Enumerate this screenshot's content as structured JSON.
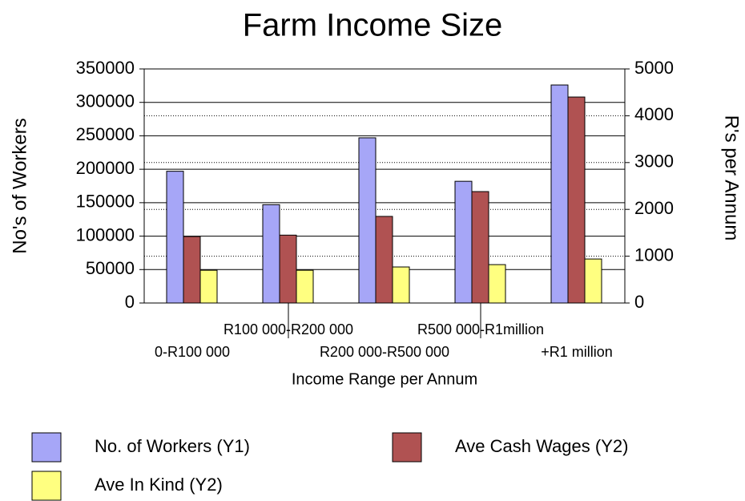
{
  "chart_data": {
    "type": "bar",
    "title": "Farm Income Size",
    "x_label": "Income Range per Annum",
    "y_label": "No's of Workers",
    "y2_label": "R's per Annum",
    "categories": [
      "0-R100 000",
      "R100 000-R200 000",
      "R200 000-R500 000",
      "R500 000-R1million",
      "+R1 million"
    ],
    "series": [
      {
        "name": "No. of Workers (Y1)",
        "color": "#a6a6f7",
        "values": [
          197000,
          147000,
          247000,
          182000,
          326000
        ]
      },
      {
        "name": "Ave Cash Wages (Y2)",
        "color": "#b05252",
        "axis": "y2",
        "values": [
          1420,
          1450,
          1850,
          2380,
          4400
        ]
      },
      {
        "name": "Ave In Kind (Y2)",
        "color": "#ffff80",
        "axis": "y2",
        "values": [
          700,
          700,
          770,
          820,
          940
        ]
      }
    ],
    "ylim": [
      0,
      350000
    ],
    "yticks": [
      0,
      50000,
      100000,
      150000,
      200000,
      250000,
      300000,
      350000
    ],
    "y2lim": [
      0,
      5000
    ],
    "y2ticks": [
      0,
      1000,
      2000,
      3000,
      4000,
      5000
    ],
    "grid": true
  }
}
